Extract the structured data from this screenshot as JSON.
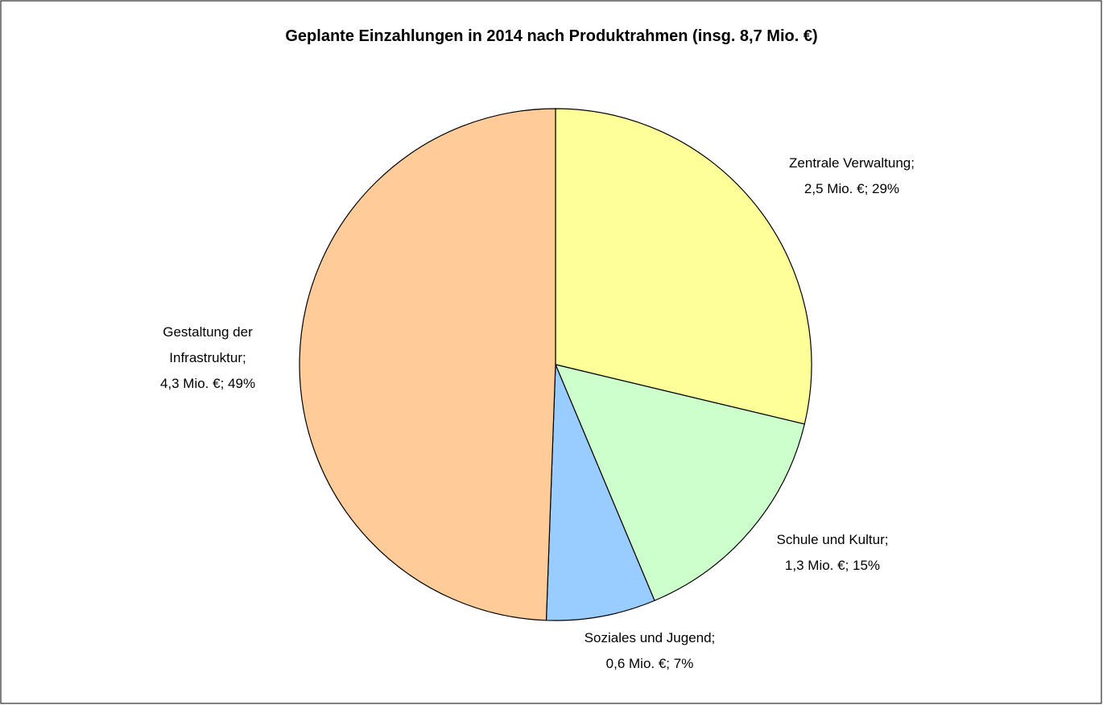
{
  "chart_data": {
    "type": "pie",
    "title": "Geplante Einzahlungen in 2014 nach Produktrahmen (insg. 8,7 Mio. €)",
    "categories": [
      "Zentrale Verwaltung;",
      "Schule und Kultur;",
      "Soziales und Jugend;",
      "Gestaltung der Infrastruktur;"
    ],
    "values": [
      2.5,
      1.3,
      0.6,
      4.3
    ],
    "value_labels": [
      "2,5 Mio. €; 29%",
      "1,3 Mio. €; 15%",
      "0,6 Mio. €; 7%",
      "4,3 Mio. €; 49%"
    ],
    "colors": [
      "#FFFF99",
      "#CCFFCC",
      "#99CCFF",
      "#FFCC99"
    ]
  }
}
